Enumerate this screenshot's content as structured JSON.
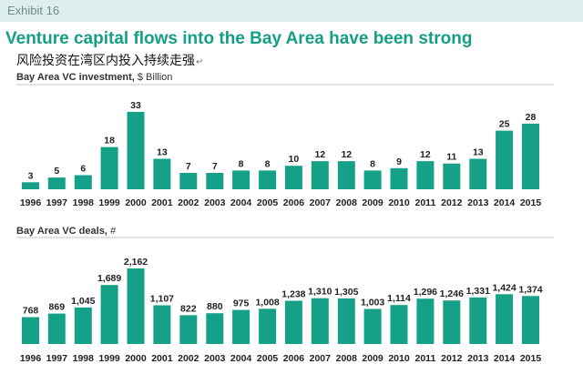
{
  "header": {
    "exhibit": "Exhibit 16",
    "headline": "Venture capital flows into the Bay Area have been strong",
    "subtitle_cn": "风险投资在湾区内投入持续走强",
    "return_mark": "↵"
  },
  "colors": {
    "bar": "#15a188",
    "headline": "#159e86",
    "exhibit_band": "#dcefed",
    "rule": "#c4c4c4"
  },
  "chart_data": [
    {
      "type": "bar",
      "title": "Bay Area VC investment,",
      "unit": "$ Billion",
      "categories": [
        "1996",
        "1997",
        "1998",
        "1999",
        "2000",
        "2001",
        "2002",
        "2003",
        "2004",
        "2005",
        "2006",
        "2007",
        "2008",
        "2009",
        "2010",
        "2011",
        "2012",
        "2013",
        "2014",
        "2015"
      ],
      "values": [
        3,
        5,
        6,
        18,
        33,
        13,
        7,
        7,
        8,
        8,
        10,
        12,
        12,
        8,
        9,
        12,
        11,
        13,
        25,
        28
      ],
      "value_labels": [
        "3",
        "5",
        "6",
        "18",
        "33",
        "13",
        "7",
        "7",
        "8",
        "8",
        "10",
        "12",
        "12",
        "8",
        "9",
        "12",
        "11",
        "13",
        "25",
        "28"
      ],
      "ylim": [
        0,
        33
      ],
      "grid": false
    },
    {
      "type": "bar",
      "title": "Bay Area VC deals,",
      "unit": "#",
      "categories": [
        "1996",
        "1997",
        "1998",
        "1999",
        "2000",
        "2001",
        "2002",
        "2003",
        "2004",
        "2005",
        "2006",
        "2007",
        "2008",
        "2009",
        "2010",
        "2011",
        "2012",
        "2013",
        "2014",
        "2015"
      ],
      "values": [
        768,
        869,
        1045,
        1689,
        2162,
        1107,
        822,
        880,
        975,
        1008,
        1238,
        1310,
        1305,
        1003,
        1114,
        1296,
        1246,
        1331,
        1424,
        1374
      ],
      "value_labels": [
        "768",
        "869",
        "1,045",
        "1,689",
        "2,162",
        "1,107",
        "822",
        "880",
        "975",
        "1,008",
        "1,238",
        "1,310",
        "1,305",
        "1,003",
        "1,114",
        "1,296",
        "1,246",
        "1,331",
        "1,424",
        "1,374"
      ],
      "ylim": [
        0,
        2162
      ],
      "grid": false
    }
  ]
}
